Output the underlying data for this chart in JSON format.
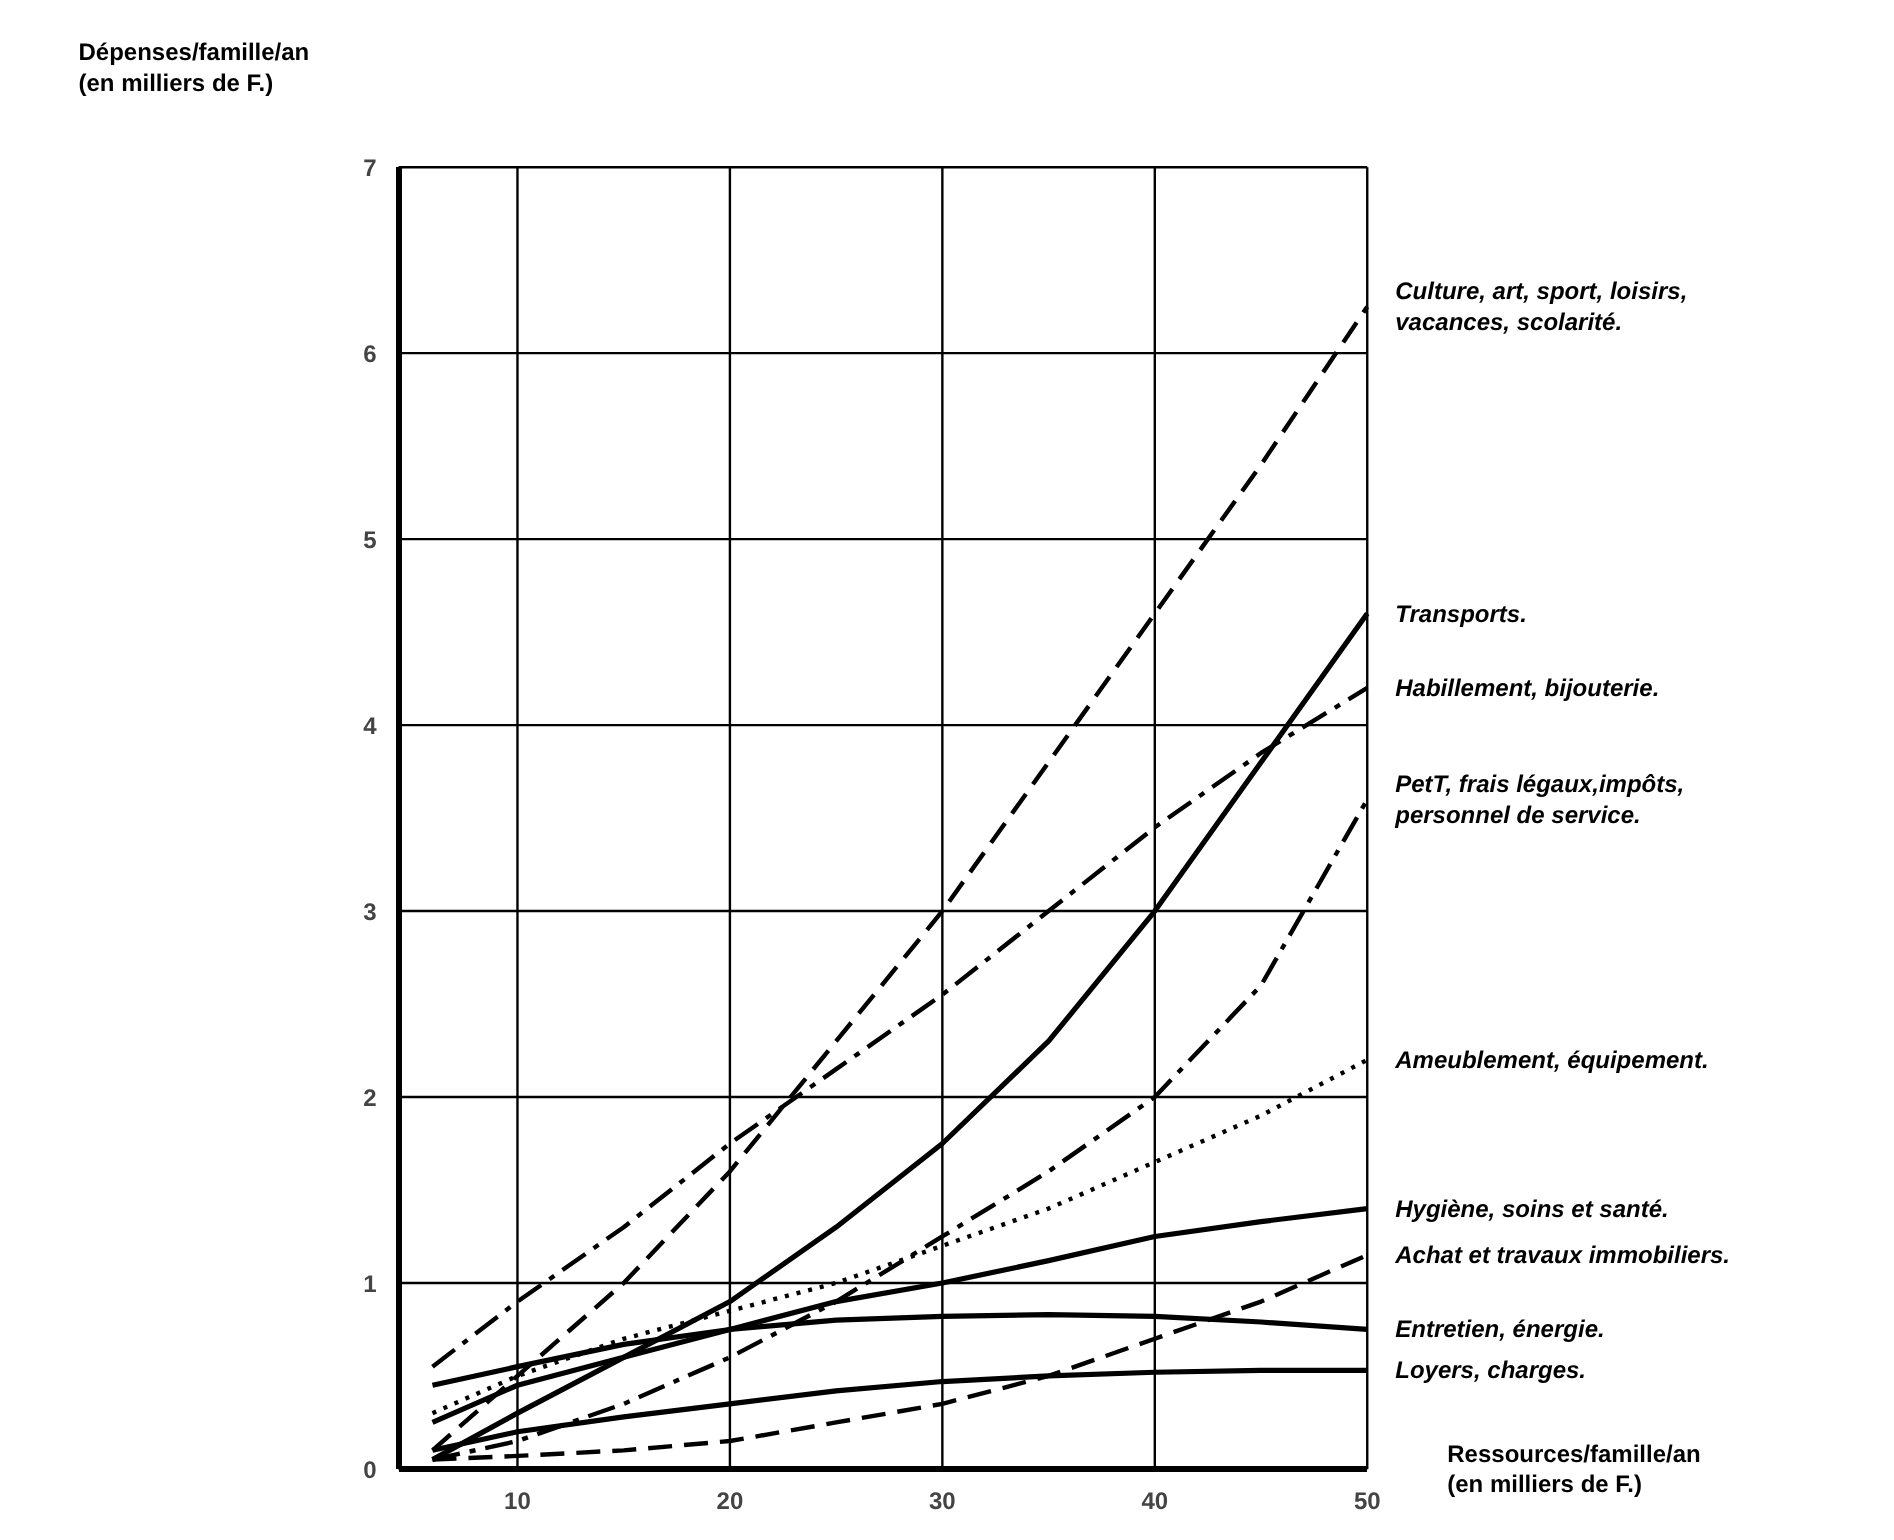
{
  "chart_data": {
    "type": "line",
    "xlabel": "Ressources/famille/an\n(en milliers de F.)",
    "ylabel": "Dépenses/famille/an\n(en milliers de F.)",
    "x": [
      6,
      10,
      15,
      20,
      25,
      30,
      35,
      40,
      45,
      50
    ],
    "xlim": [
      4.4,
      50
    ],
    "ylim": [
      0,
      7
    ],
    "xticks": [
      10,
      20,
      30,
      40,
      50
    ],
    "yticks": [
      0,
      1,
      2,
      3,
      4,
      5,
      6,
      7
    ],
    "grid": true,
    "series": [
      {
        "name": "Culture, art, sport, loisirs,\nvacances, scolarité.",
        "color": "#000000",
        "line_style": "dashed",
        "values": [
          0.1,
          0.5,
          1.0,
          1.6,
          2.3,
          3.0,
          3.8,
          4.6,
          5.4,
          6.25
        ]
      },
      {
        "name": "Transports.",
        "color": "#000000",
        "line_style": "solid",
        "values": [
          0.05,
          0.3,
          0.6,
          0.9,
          1.3,
          1.75,
          2.3,
          3.0,
          3.8,
          4.6
        ]
      },
      {
        "name": "Habillement, bijouterie.",
        "color": "#000000",
        "line_style": "dashdot",
        "values": [
          0.55,
          0.9,
          1.3,
          1.75,
          2.15,
          2.55,
          3.0,
          3.45,
          3.85,
          4.2
        ]
      },
      {
        "name": "PetT, frais légaux,impôts,\npersonnel de service.",
        "color": "#000000",
        "line_style": "dashdot",
        "values": [
          0.05,
          0.15,
          0.35,
          0.6,
          0.9,
          1.25,
          1.6,
          2.0,
          2.6,
          3.6
        ]
      },
      {
        "name": "Ameublement, équipement.",
        "color": "#000000",
        "line_style": "dotted",
        "values": [
          0.3,
          0.5,
          0.7,
          0.85,
          1.0,
          1.2,
          1.4,
          1.65,
          1.9,
          2.2
        ]
      },
      {
        "name": "Hygiène, soins et santé.",
        "color": "#000000",
        "line_style": "solid",
        "values": [
          0.25,
          0.45,
          0.6,
          0.75,
          0.9,
          1.0,
          1.12,
          1.25,
          1.33,
          1.4
        ]
      },
      {
        "name": "Achat et travaux immobiliers.",
        "color": "#000000",
        "line_style": "dashed",
        "values": [
          0.05,
          0.07,
          0.1,
          0.15,
          0.25,
          0.35,
          0.5,
          0.7,
          0.9,
          1.15
        ]
      },
      {
        "name": "Entretien, énergie.",
        "color": "#000000",
        "line_style": "solid",
        "values": [
          0.45,
          0.55,
          0.67,
          0.75,
          0.8,
          0.82,
          0.83,
          0.82,
          0.79,
          0.75
        ]
      },
      {
        "name": "Loyers, charges.",
        "color": "#000000",
        "line_style": "solid",
        "values": [
          0.1,
          0.2,
          0.28,
          0.35,
          0.42,
          0.47,
          0.5,
          0.52,
          0.53,
          0.53
        ]
      }
    ]
  }
}
